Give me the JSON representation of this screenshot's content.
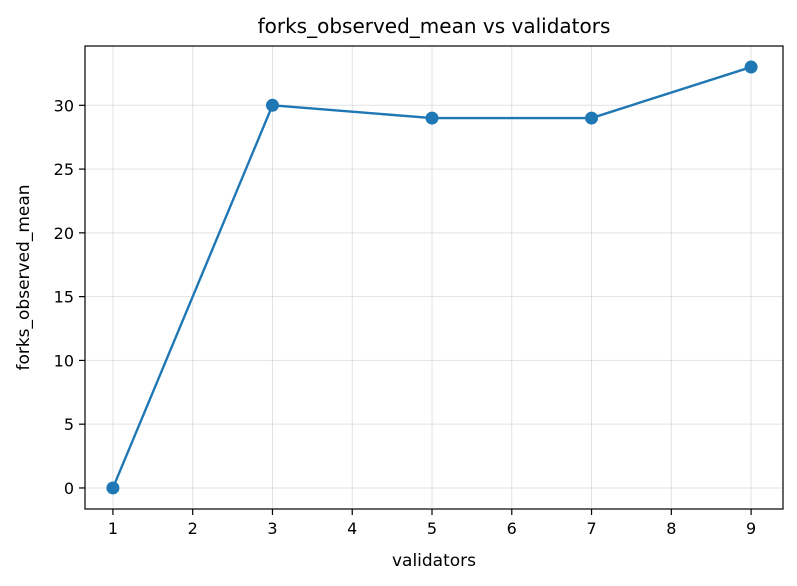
{
  "chart_data": {
    "type": "line",
    "title": "forks_observed_mean vs validators",
    "xlabel": "validators",
    "ylabel": "forks_observed_mean",
    "x": [
      1,
      3,
      5,
      7,
      9
    ],
    "series": [
      {
        "values": [
          0,
          30,
          29,
          29,
          33
        ]
      }
    ],
    "xlim": [
      0.65,
      9.4
    ],
    "ylim": [
      -1.65,
      34.65
    ],
    "xticks": [
      1,
      2,
      3,
      4,
      5,
      6,
      7,
      8,
      9
    ],
    "yticks": [
      0,
      5,
      10,
      15,
      20,
      25,
      30
    ],
    "grid": true,
    "marker": "circle",
    "line_color": "#1f77b4"
  }
}
